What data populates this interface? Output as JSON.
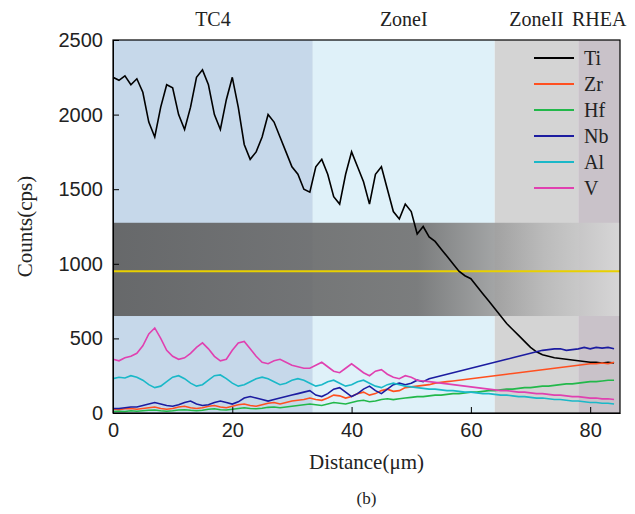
{
  "chart_data": {
    "type": "line",
    "caption": "(b)",
    "x_label": "Distance(μm)",
    "y_label": "Counts(cps)",
    "xlim": [
      0,
      85
    ],
    "ylim": [
      0,
      2500
    ],
    "xticks": [
      0,
      20,
      40,
      60,
      80
    ],
    "yticks": [
      0,
      500,
      1000,
      1500,
      2000,
      2500
    ],
    "legend": "top right",
    "zones": [
      {
        "name": "TC4",
        "start": 0,
        "end": 33.5
      },
      {
        "name": "ZoneI",
        "start": 33.5,
        "end": 64
      },
      {
        "name": "ZoneII",
        "start": 64,
        "end": 78
      },
      {
        "name": "RHEA",
        "start": 78,
        "end": 85
      }
    ],
    "x": [
      0,
      1,
      2,
      3,
      4,
      5,
      6,
      7,
      8,
      9,
      10,
      11,
      12,
      13,
      14,
      15,
      16,
      17,
      18,
      19,
      20,
      21,
      22,
      23,
      24,
      25,
      26,
      27,
      28,
      29,
      30,
      31,
      32,
      33,
      34,
      35,
      36,
      37,
      38,
      39,
      40,
      41,
      42,
      43,
      44,
      45,
      46,
      47,
      48,
      49,
      50,
      51,
      52,
      53,
      54,
      55,
      56,
      57,
      58,
      59,
      60,
      61,
      62,
      63,
      64,
      65,
      66,
      67,
      68,
      69,
      70,
      71,
      72,
      73,
      74,
      75,
      76,
      77,
      78,
      79,
      80,
      81,
      82,
      83,
      84
    ],
    "series": [
      {
        "name": "Ti",
        "color": "#000000",
        "values": [
          2250,
          2230,
          2260,
          2200,
          2240,
          2150,
          1950,
          1850,
          2050,
          2200,
          2180,
          2000,
          1900,
          2050,
          2250,
          2300,
          2200,
          2000,
          1900,
          2100,
          2250,
          2050,
          1800,
          1700,
          1750,
          1850,
          2000,
          1950,
          1850,
          1750,
          1650,
          1600,
          1500,
          1480,
          1650,
          1700,
          1600,
          1450,
          1400,
          1600,
          1750,
          1650,
          1550,
          1400,
          1600,
          1650,
          1500,
          1350,
          1300,
          1400,
          1350,
          1200,
          1250,
          1180,
          1150,
          1100,
          1050,
          1000,
          950,
          920,
          900,
          850,
          800,
          750,
          700,
          650,
          600,
          560,
          520,
          480,
          440,
          410,
          390,
          380,
          370,
          365,
          360,
          355,
          350,
          345,
          340,
          340,
          335,
          340,
          335
        ]
      },
      {
        "name": "Zr",
        "color": "#ff5020",
        "values": [
          25,
          22,
          28,
          30,
          25,
          30,
          35,
          40,
          30,
          25,
          30,
          40,
          45,
          35,
          30,
          35,
          45,
          50,
          40,
          35,
          45,
          55,
          60,
          50,
          45,
          55,
          65,
          70,
          60,
          70,
          80,
          85,
          90,
          100,
          90,
          85,
          100,
          120,
          115,
          100,
          110,
          130,
          140,
          120,
          130,
          150,
          160,
          145,
          150,
          170,
          175,
          180,
          185,
          190,
          200,
          205,
          210,
          215,
          220,
          225,
          230,
          235,
          240,
          245,
          250,
          255,
          260,
          265,
          270,
          275,
          280,
          285,
          290,
          295,
          300,
          305,
          310,
          315,
          320,
          325,
          330,
          330,
          335,
          330,
          340
        ]
      },
      {
        "name": "Hf",
        "color": "#22b84a",
        "values": [
          10,
          12,
          10,
          15,
          12,
          15,
          18,
          20,
          15,
          12,
          15,
          20,
          22,
          18,
          15,
          18,
          25,
          28,
          22,
          20,
          25,
          30,
          35,
          30,
          28,
          32,
          38,
          40,
          35,
          40,
          45,
          50,
          55,
          60,
          55,
          50,
          60,
          70,
          65,
          60,
          70,
          80,
          85,
          75,
          80,
          90,
          95,
          90,
          95,
          100,
          105,
          110,
          110,
          115,
          120,
          120,
          125,
          130,
          130,
          135,
          140,
          140,
          145,
          150,
          150,
          155,
          160,
          160,
          165,
          170,
          170,
          175,
          180,
          180,
          185,
          190,
          195,
          195,
          200,
          205,
          210,
          210,
          215,
          220,
          220
        ]
      },
      {
        "name": "Nb",
        "color": "#1c1ca0",
        "values": [
          30,
          30,
          35,
          40,
          40,
          50,
          60,
          70,
          60,
          50,
          45,
          55,
          70,
          80,
          60,
          50,
          55,
          70,
          80,
          70,
          60,
          75,
          100,
          110,
          100,
          90,
          80,
          90,
          100,
          110,
          120,
          130,
          140,
          150,
          120,
          110,
          130,
          160,
          170,
          140,
          110,
          130,
          160,
          180,
          150,
          130,
          160,
          190,
          200,
          190,
          200,
          220,
          210,
          230,
          240,
          250,
          260,
          270,
          280,
          290,
          300,
          310,
          320,
          330,
          340,
          350,
          360,
          370,
          380,
          390,
          400,
          410,
          420,
          425,
          430,
          430,
          420,
          425,
          430,
          440,
          430,
          440,
          435,
          440,
          430
        ]
      },
      {
        "name": "Al",
        "color": "#1ab8c8",
        "values": [
          230,
          240,
          235,
          250,
          240,
          220,
          190,
          170,
          180,
          210,
          240,
          250,
          230,
          200,
          180,
          190,
          220,
          250,
          255,
          230,
          200,
          180,
          190,
          210,
          230,
          240,
          230,
          210,
          190,
          200,
          220,
          230,
          220,
          200,
          180,
          190,
          210,
          220,
          200,
          180,
          190,
          210,
          220,
          200,
          180,
          170,
          190,
          200,
          190,
          180,
          175,
          170,
          165,
          160,
          160,
          155,
          150,
          150,
          145,
          140,
          140,
          135,
          130,
          130,
          125,
          120,
          120,
          115,
          110,
          110,
          105,
          100,
          100,
          95,
          90,
          90,
          85,
          80,
          80,
          75,
          70,
          70,
          65,
          65,
          60
        ]
      },
      {
        "name": "V",
        "color": "#e040b0",
        "values": [
          360,
          350,
          370,
          380,
          400,
          450,
          530,
          570,
          500,
          420,
          380,
          360,
          370,
          400,
          440,
          470,
          430,
          380,
          350,
          360,
          420,
          470,
          480,
          430,
          380,
          340,
          330,
          350,
          360,
          340,
          320,
          310,
          300,
          300,
          320,
          340,
          310,
          280,
          270,
          300,
          330,
          300,
          270,
          250,
          280,
          290,
          260,
          240,
          230,
          250,
          240,
          220,
          215,
          210,
          205,
          200,
          195,
          190,
          185,
          180,
          175,
          170,
          165,
          160,
          155,
          150,
          150,
          145,
          140,
          140,
          135,
          130,
          130,
          125,
          120,
          120,
          115,
          110,
          110,
          105,
          100,
          100,
          95,
          95,
          90
        ]
      }
    ]
  }
}
